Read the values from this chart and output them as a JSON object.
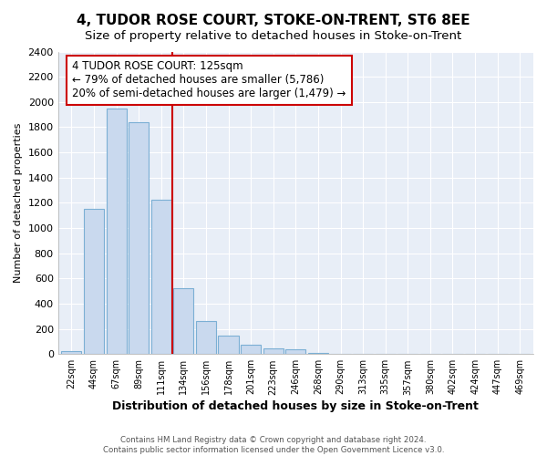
{
  "title": "4, TUDOR ROSE COURT, STOKE-ON-TRENT, ST6 8EE",
  "subtitle": "Size of property relative to detached houses in Stoke-on-Trent",
  "xlabel": "Distribution of detached houses by size in Stoke-on-Trent",
  "ylabel": "Number of detached properties",
  "bar_labels": [
    "22sqm",
    "44sqm",
    "67sqm",
    "89sqm",
    "111sqm",
    "134sqm",
    "156sqm",
    "178sqm",
    "201sqm",
    "223sqm",
    "246sqm",
    "268sqm",
    "290sqm",
    "313sqm",
    "335sqm",
    "357sqm",
    "380sqm",
    "402sqm",
    "424sqm",
    "447sqm",
    "469sqm"
  ],
  "bar_values": [
    25,
    1155,
    1950,
    1840,
    1225,
    520,
    265,
    148,
    78,
    45,
    35,
    10,
    5,
    2,
    1,
    1,
    0,
    0,
    0,
    0,
    0
  ],
  "bar_color": "#c9d9ee",
  "bar_edge_color": "#7bafd4",
  "vline_color": "#cc0000",
  "vline_pos": 4.5,
  "annotation_title": "4 TUDOR ROSE COURT: 125sqm",
  "annotation_line1": "← 79% of detached houses are smaller (5,786)",
  "annotation_line2": "20% of semi-detached houses are larger (1,479) →",
  "ylim": [
    0,
    2400
  ],
  "yticks": [
    0,
    200,
    400,
    600,
    800,
    1000,
    1200,
    1400,
    1600,
    1800,
    2000,
    2200,
    2400
  ],
  "footer1": "Contains HM Land Registry data © Crown copyright and database right 2024.",
  "footer2": "Contains public sector information licensed under the Open Government Licence v3.0.",
  "bg_color": "#ffffff",
  "plot_bg_color": "#e8eef7",
  "grid_color": "#ffffff",
  "title_fontsize": 11,
  "subtitle_fontsize": 9.5
}
